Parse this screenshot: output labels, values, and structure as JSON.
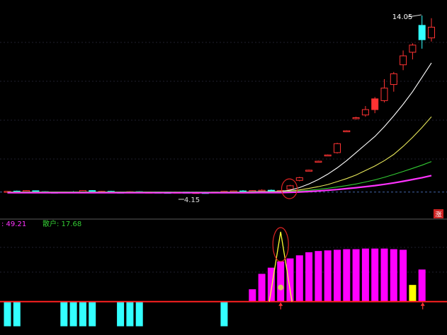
{
  "chart_data": [
    {
      "type": "candlestick",
      "panel": "price",
      "annotations": {
        "high_label": "14.05",
        "low_label": "4.15",
        "limit_up_marker": "涨"
      },
      "ylim": [
        3.4,
        14.6
      ],
      "dashed_reference_level": 4.2,
      "candles": [
        {
          "open": 4.2,
          "high": 4.26,
          "low": 4.16,
          "close": 4.24,
          "color": "#ff3333"
        },
        {
          "open": 4.25,
          "high": 4.28,
          "low": 4.18,
          "close": 4.2,
          "color": "#33ffff"
        },
        {
          "open": 4.22,
          "high": 4.3,
          "low": 4.19,
          "close": 4.28,
          "color": "#ff3333"
        },
        {
          "open": 4.27,
          "high": 4.29,
          "low": 4.2,
          "close": 4.22,
          "color": "#33ffff"
        },
        {
          "open": 4.22,
          "high": 4.24,
          "low": 4.17,
          "close": 4.2,
          "color": "#33ffff"
        },
        {
          "open": 4.2,
          "high": 4.23,
          "low": 4.15,
          "close": 4.18,
          "color": "#33ffff"
        },
        {
          "open": 4.18,
          "high": 4.22,
          "low": 4.16,
          "close": 4.21,
          "color": "#ff3333"
        },
        {
          "open": 4.21,
          "high": 4.25,
          "low": 4.18,
          "close": 4.19,
          "color": "#33ffff"
        },
        {
          "open": 4.2,
          "high": 4.3,
          "low": 4.18,
          "close": 4.28,
          "color": "#ff3333"
        },
        {
          "open": 4.28,
          "high": 4.3,
          "low": 4.2,
          "close": 4.22,
          "color": "#33ffff"
        },
        {
          "open": 4.22,
          "high": 4.26,
          "low": 4.19,
          "close": 4.24,
          "color": "#ff3333"
        },
        {
          "open": 4.24,
          "high": 4.27,
          "low": 4.18,
          "close": 4.2,
          "color": "#33ffff"
        },
        {
          "open": 4.2,
          "high": 4.23,
          "low": 4.16,
          "close": 4.18,
          "color": "#33ffff"
        },
        {
          "open": 4.18,
          "high": 4.24,
          "low": 4.17,
          "close": 4.22,
          "color": "#ff3333"
        },
        {
          "open": 4.22,
          "high": 4.24,
          "low": 4.15,
          "close": 4.17,
          "color": "#33ffff"
        },
        {
          "open": 4.17,
          "high": 4.22,
          "low": 4.15,
          "close": 4.2,
          "color": "#ff3333"
        },
        {
          "open": 4.2,
          "high": 4.22,
          "low": 4.17,
          "close": 4.19,
          "color": "#33ffff"
        },
        {
          "open": 4.19,
          "high": 4.22,
          "low": 4.15,
          "close": 4.16,
          "color": "#33ffff"
        },
        {
          "open": 4.16,
          "high": 4.21,
          "low": 4.15,
          "close": 4.2,
          "color": "#ff3333"
        },
        {
          "open": 4.2,
          "high": 4.22,
          "low": 4.16,
          "close": 4.17,
          "color": "#33ffff"
        },
        {
          "open": 4.17,
          "high": 4.2,
          "low": 4.15,
          "close": 4.18,
          "color": "#ff3333"
        },
        {
          "open": 4.18,
          "high": 4.21,
          "low": 4.16,
          "close": 4.17,
          "color": "#33ffff"
        },
        {
          "open": 4.17,
          "high": 4.22,
          "low": 4.16,
          "close": 4.21,
          "color": "#ff3333"
        },
        {
          "open": 4.21,
          "high": 4.26,
          "low": 4.19,
          "close": 4.24,
          "color": "#ff3333"
        },
        {
          "open": 4.24,
          "high": 4.28,
          "low": 4.2,
          "close": 4.26,
          "color": "#ff3333"
        },
        {
          "open": 4.26,
          "high": 4.3,
          "low": 4.22,
          "close": 4.24,
          "color": "#33ffff"
        },
        {
          "open": 4.24,
          "high": 4.3,
          "low": 4.22,
          "close": 4.28,
          "color": "#ff3333"
        },
        {
          "open": 4.28,
          "high": 4.35,
          "low": 4.24,
          "close": 4.3,
          "color": "#ff3333"
        },
        {
          "open": 4.3,
          "high": 4.34,
          "low": 4.22,
          "close": 4.25,
          "color": "#33ffff"
        },
        {
          "open": 4.25,
          "high": 4.3,
          "low": 4.2,
          "close": 4.28,
          "color": "#ff3333"
        },
        {
          "open": 4.35,
          "high": 4.6,
          "low": 4.3,
          "close": 4.55,
          "color": "#ff3333"
        },
        {
          "open": 4.85,
          "high": 5.05,
          "low": 4.8,
          "close": 5.0,
          "color": "#ff3333"
        },
        {
          "open": 5.4,
          "high": 5.45,
          "low": 5.38,
          "close": 5.42,
          "color": "#ff3333"
        },
        {
          "open": 5.9,
          "high": 5.95,
          "low": 5.88,
          "close": 5.92,
          "color": "#ff3333"
        },
        {
          "open": 6.25,
          "high": 6.3,
          "low": 6.22,
          "close": 6.27,
          "color": "#ff3333"
        },
        {
          "open": 6.4,
          "high": 6.95,
          "low": 6.35,
          "close": 6.9,
          "color": "#ff3333"
        },
        {
          "open": 7.6,
          "high": 7.65,
          "low": 7.58,
          "close": 7.62,
          "color": "#ff3333"
        },
        {
          "open": 8.3,
          "high": 8.4,
          "low": 8.25,
          "close": 8.35,
          "color": "#ff3333"
        },
        {
          "open": 8.5,
          "high": 9.0,
          "low": 8.4,
          "close": 8.8,
          "color": "#ff3333"
        },
        {
          "open": 9.4,
          "high": 9.5,
          "low": 8.6,
          "close": 8.8,
          "color": "#ff3333"
        },
        {
          "open": 9.3,
          "high": 10.5,
          "low": 9.2,
          "close": 10.0,
          "color": "#ff3333"
        },
        {
          "open": 10.2,
          "high": 10.9,
          "low": 9.8,
          "close": 10.8,
          "color": "#ff3333"
        },
        {
          "open": 11.3,
          "high": 12.1,
          "low": 11.0,
          "close": 11.8,
          "color": "#ff3333"
        },
        {
          "open": 12.0,
          "high": 12.5,
          "low": 11.6,
          "close": 12.4,
          "color": "#ff3333"
        },
        {
          "open": 13.5,
          "high": 14.05,
          "low": 12.2,
          "close": 12.7,
          "color": "#33ffff"
        },
        {
          "open": 12.8,
          "high": 13.9,
          "low": 12.6,
          "close": 13.4,
          "color": "#ff3333"
        }
      ],
      "moving_averages": [
        {
          "color": "#ffffff",
          "values": [
            4.2,
            4.2,
            4.21,
            4.21,
            4.21,
            4.2,
            4.2,
            4.2,
            4.21,
            4.21,
            4.21,
            4.21,
            4.2,
            4.2,
            4.2,
            4.2,
            4.19,
            4.19,
            4.19,
            4.18,
            4.18,
            4.18,
            4.19,
            4.19,
            4.2,
            4.21,
            4.22,
            4.23,
            4.23,
            4.24,
            4.3,
            4.45,
            4.65,
            4.9,
            5.2,
            5.55,
            5.95,
            6.4,
            6.85,
            7.3,
            7.85,
            8.45,
            9.1,
            9.8,
            10.6,
            11.4
          ]
        },
        {
          "color": "#e8e85a",
          "values": [
            4.2,
            4.2,
            4.2,
            4.21,
            4.21,
            4.21,
            4.21,
            4.21,
            4.21,
            4.21,
            4.21,
            4.21,
            4.21,
            4.2,
            4.2,
            4.2,
            4.2,
            4.2,
            4.19,
            4.19,
            4.19,
            4.19,
            4.19,
            4.19,
            4.2,
            4.2,
            4.21,
            4.21,
            4.22,
            4.22,
            4.25,
            4.32,
            4.4,
            4.5,
            4.62,
            4.78,
            4.95,
            5.15,
            5.4,
            5.65,
            5.95,
            6.3,
            6.75,
            7.25,
            7.8,
            8.4
          ]
        },
        {
          "color": "#33cc33",
          "values": [
            4.2,
            4.2,
            4.2,
            4.2,
            4.2,
            4.2,
            4.2,
            4.2,
            4.2,
            4.2,
            4.2,
            4.2,
            4.2,
            4.2,
            4.2,
            4.2,
            4.2,
            4.2,
            4.2,
            4.2,
            4.2,
            4.2,
            4.2,
            4.2,
            4.2,
            4.2,
            4.2,
            4.21,
            4.21,
            4.21,
            4.22,
            4.26,
            4.3,
            4.35,
            4.41,
            4.48,
            4.56,
            4.65,
            4.76,
            4.88,
            5.02,
            5.18,
            5.35,
            5.52,
            5.7,
            5.9
          ]
        },
        {
          "color": "#ff33ff",
          "values": [
            4.16,
            4.16,
            4.16,
            4.16,
            4.16,
            4.16,
            4.16,
            4.16,
            4.16,
            4.16,
            4.16,
            4.16,
            4.16,
            4.16,
            4.16,
            4.16,
            4.16,
            4.16,
            4.16,
            4.16,
            4.16,
            4.16,
            4.16,
            4.16,
            4.16,
            4.16,
            4.16,
            4.17,
            4.17,
            4.17,
            4.18,
            4.2,
            4.23,
            4.26,
            4.3,
            4.34,
            4.39,
            4.44,
            4.5,
            4.56,
            4.63,
            4.71,
            4.8,
            4.9,
            5.0,
            5.12
          ]
        }
      ]
    },
    {
      "type": "bar",
      "panel": "indicator",
      "header": [
        {
          "text": ": 49.21",
          "color": "#ff33ff"
        },
        {
          "text": "散户: 17.68",
          "color": "#33cc33"
        }
      ],
      "ylim": [
        -45,
        120
      ],
      "zero_line_color": "#ff2020",
      "series": [
        {
          "color": "#33ffff",
          "values": [
            -40,
            -40,
            0,
            0,
            0,
            0,
            -40,
            -40,
            -40,
            -40,
            0,
            0,
            -40,
            -40,
            -40,
            0,
            0,
            0,
            0,
            0,
            0,
            0,
            0,
            -40,
            0,
            0,
            0,
            0,
            0,
            0,
            0,
            0,
            0,
            0,
            0,
            0,
            0,
            0,
            0,
            0,
            0,
            0,
            0,
            0,
            0,
            0
          ]
        },
        {
          "color": "#ff00ff",
          "values": [
            0,
            0,
            0,
            0,
            0,
            0,
            0,
            0,
            0,
            0,
            0,
            0,
            0,
            0,
            0,
            0,
            0,
            0,
            0,
            0,
            0,
            0,
            0,
            0,
            0,
            0,
            20,
            45,
            55,
            65,
            70,
            75,
            80,
            82,
            83,
            84,
            85,
            85,
            86,
            86,
            86,
            85,
            84,
            0,
            52,
            0
          ]
        },
        {
          "color": "#ffff00",
          "values": [
            0,
            0,
            0,
            0,
            0,
            0,
            0,
            0,
            0,
            0,
            0,
            0,
            0,
            0,
            0,
            0,
            0,
            0,
            0,
            0,
            0,
            0,
            0,
            0,
            0,
            0,
            0,
            0,
            0,
            0,
            0,
            0,
            0,
            0,
            0,
            0,
            0,
            0,
            0,
            0,
            0,
            0,
            0,
            27,
            0,
            0
          ]
        }
      ]
    }
  ]
}
